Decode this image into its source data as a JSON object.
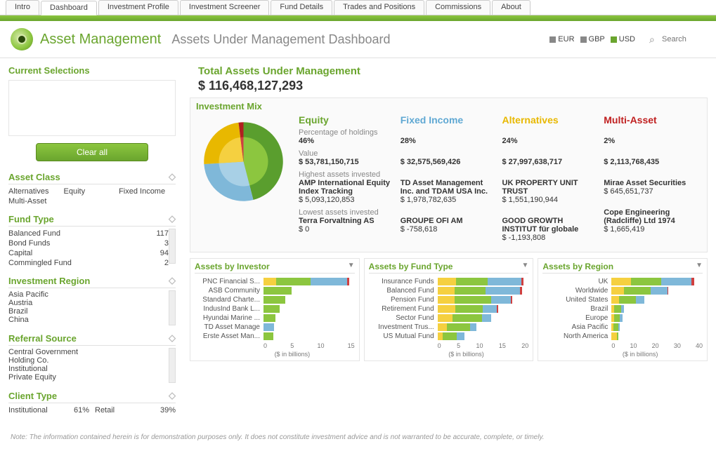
{
  "tabs": [
    "Intro",
    "Dashboard",
    "Investment Profile",
    "Investment Screener",
    "Fund Details",
    "Trades and Positions",
    "Commissions",
    "About"
  ],
  "active_tab": 1,
  "app_title": "Asset Management",
  "page_title": "Assets Under Management Dashboard",
  "currencies": [
    {
      "code": "EUR",
      "color": "#888888"
    },
    {
      "code": "GBP",
      "color": "#888888"
    },
    {
      "code": "USD",
      "color": "#6aa52e"
    }
  ],
  "search_placeholder": "Search",
  "sidebar": {
    "current_selections_title": "Current Selections",
    "clear_all": "Clear all",
    "filters": {
      "asset_class": {
        "title": "Asset Class",
        "items": [
          "Alternatives",
          "Equity",
          "Fixed Income",
          "Multi-Asset"
        ]
      },
      "fund_type": {
        "title": "Fund Type",
        "rows": [
          {
            "name": "Balanced Fund",
            "count": "117"
          },
          {
            "name": "Bond Funds",
            "count": "3"
          },
          {
            "name": "Capital",
            "count": "94"
          },
          {
            "name": "Commingled Fund",
            "count": "2"
          }
        ]
      },
      "investment_region": {
        "title": "Investment Region",
        "items": [
          "Asia Pacific",
          "Austria",
          "Brazil",
          "China"
        ]
      },
      "referral_source": {
        "title": "Referral Source",
        "items": [
          "Central Government",
          "Holding Co.",
          "Institutional",
          "Private Equity"
        ]
      },
      "client_type": {
        "title": "Client Type",
        "rows": [
          {
            "name": "Institutional",
            "pct": "61%",
            "name2": "Retail",
            "pct2": "39%"
          }
        ]
      }
    }
  },
  "aum": {
    "title": "Total Assets Under Management",
    "value": "$ 116,468,127,293"
  },
  "mix": {
    "title": "Investment Mix",
    "pie": {
      "slices": [
        {
          "label": "Equity",
          "value": 46,
          "color_outer": "#5a9e2e",
          "color_inner": "#8cc63f"
        },
        {
          "label": "Fixed Income",
          "value": 28,
          "color_outer": "#7fb8d9",
          "color_inner": "#a8d0e6"
        },
        {
          "label": "Alternatives",
          "value": 24,
          "color_outer": "#e8b800",
          "color_inner": "#f5d040"
        },
        {
          "label": "Multi-Asset",
          "value": 2,
          "color_outer": "#b02020",
          "color_inner": "#d04040"
        }
      ]
    },
    "labels": {
      "pct": "Percentage of holdings",
      "val": "Value",
      "hi": "Highest assets invested",
      "lo": "Lowest assets invested"
    },
    "cols": [
      {
        "name": "Equity",
        "color": "#6aa52e",
        "pct": "46%",
        "value": "$ 53,781,150,715",
        "hi_name": "AMP International Equity Index Tracking",
        "hi_val": "$ 5,093,120,853",
        "lo_name": "Terra Forvaltning AS",
        "lo_val": "$ 0"
      },
      {
        "name": "Fixed Income",
        "color": "#5fa8d3",
        "pct": "28%",
        "value": "$ 32,575,569,426",
        "hi_name": "TD Asset Management Inc. and TDAM USA Inc.",
        "hi_val": "$ 1,978,782,635",
        "lo_name": "GROUPE OFI AM",
        "lo_val": "$ -758,618"
      },
      {
        "name": "Alternatives",
        "color": "#e8b800",
        "pct": "24%",
        "value": "$ 27,997,638,717",
        "hi_name": "UK PROPERTY UNIT TRUST",
        "hi_val": "$ 1,551,190,944",
        "lo_name": "GOOD GROWTH INSTITUT für globale",
        "lo_val": "$ -1,193,808"
      },
      {
        "name": "Multi-Asset",
        "color": "#c02020",
        "pct": "2%",
        "value": "$ 2,113,768,435",
        "hi_name": "Mirae Asset Securities",
        "hi_val": "$ 645,651,737",
        "lo_name": "Cope Engineering (Radcliffe) Ltd 1974",
        "lo_val": "$ 1,665,419"
      }
    ]
  },
  "charts": {
    "axis_label": "($ in billions)",
    "colors": {
      "alt": "#f5d040",
      "eq": "#8cc63f",
      "fi": "#7fb8d9",
      "ma": "#d04040"
    },
    "investor": {
      "title": "Assets by Investor",
      "max": 17,
      "ticks": [
        "0",
        "5",
        "10",
        "15"
      ],
      "rows": [
        {
          "lbl": "PNC Financial S...",
          "segs": [
            {
              "c": "alt",
              "v": 2.3
            },
            {
              "c": "eq",
              "v": 6.5
            },
            {
              "c": "fi",
              "v": 6.8
            },
            {
              "c": "ma",
              "v": 0.4
            }
          ]
        },
        {
          "lbl": "ASB Community",
          "segs": [
            {
              "c": "eq",
              "v": 5.2
            }
          ]
        },
        {
          "lbl": "Standard Charte...",
          "segs": [
            {
              "c": "eq",
              "v": 4.0
            }
          ]
        },
        {
          "lbl": "IndusInd Bank L...",
          "segs": [
            {
              "c": "eq",
              "v": 3.0
            }
          ]
        },
        {
          "lbl": "Hyundai Marine ...",
          "segs": [
            {
              "c": "eq",
              "v": 2.2
            }
          ]
        },
        {
          "lbl": "TD Asset Manage",
          "segs": [
            {
              "c": "fi",
              "v": 2.0
            }
          ]
        },
        {
          "lbl": "Erste Asset Man...",
          "segs": [
            {
              "c": "eq",
              "v": 1.8
            }
          ]
        }
      ]
    },
    "fundtype": {
      "title": "Assets by Fund Type",
      "max": 23,
      "ticks": [
        "0",
        "5",
        "10",
        "15",
        "20"
      ],
      "rows": [
        {
          "lbl": "Insurance Funds",
          "segs": [
            {
              "c": "alt",
              "v": 4.7
            },
            {
              "c": "eq",
              "v": 8.0
            },
            {
              "c": "fi",
              "v": 8.5
            },
            {
              "c": "ma",
              "v": 0.5
            }
          ]
        },
        {
          "lbl": "Balanced Fund",
          "segs": [
            {
              "c": "alt",
              "v": 4.4
            },
            {
              "c": "eq",
              "v": 7.8
            },
            {
              "c": "fi",
              "v": 8.6
            },
            {
              "c": "ma",
              "v": 0.5
            }
          ]
        },
        {
          "lbl": "Pension Fund",
          "segs": [
            {
              "c": "alt",
              "v": 4.3
            },
            {
              "c": "eq",
              "v": 9.2
            },
            {
              "c": "fi",
              "v": 5.0
            },
            {
              "c": "ma",
              "v": 0.4
            }
          ]
        },
        {
          "lbl": "Retirement Fund",
          "segs": [
            {
              "c": "alt",
              "v": 4.5
            },
            {
              "c": "eq",
              "v": 7.0
            },
            {
              "c": "fi",
              "v": 3.5
            },
            {
              "c": "ma",
              "v": 0.3
            }
          ]
        },
        {
          "lbl": "Sector Fund",
          "segs": [
            {
              "c": "alt",
              "v": 3.8
            },
            {
              "c": "eq",
              "v": 7.5
            },
            {
              "c": "fi",
              "v": 2.2
            }
          ]
        },
        {
          "lbl": "Investment Trus...",
          "segs": [
            {
              "c": "alt",
              "v": 2.3
            },
            {
              "c": "eq",
              "v": 6.0
            },
            {
              "c": "fi",
              "v": 1.5
            }
          ]
        },
        {
          "lbl": "US Mutual Fund",
          "segs": [
            {
              "c": "alt",
              "v": 1.3
            },
            {
              "c": "eq",
              "v": 3.5
            },
            {
              "c": "fi",
              "v": 2.0
            }
          ]
        }
      ]
    },
    "region": {
      "title": "Assets by Region",
      "max": 45,
      "ticks": [
        "0",
        "10",
        "20",
        "30",
        "40"
      ],
      "rows": [
        {
          "lbl": "UK",
          "segs": [
            {
              "c": "alt",
              "v": 9.5
            },
            {
              "c": "eq",
              "v": 15.0
            },
            {
              "c": "fi",
              "v": 15.0
            },
            {
              "c": "ma",
              "v": 1.3
            }
          ]
        },
        {
          "lbl": "Worldwide",
          "segs": [
            {
              "c": "alt",
              "v": 6.3
            },
            {
              "c": "eq",
              "v": 13.0
            },
            {
              "c": "fi",
              "v": 8.5
            },
            {
              "c": "ma",
              "v": 0.3
            }
          ]
        },
        {
          "lbl": "United States",
          "segs": [
            {
              "c": "alt",
              "v": 3.6
            },
            {
              "c": "eq",
              "v": 8.5
            },
            {
              "c": "fi",
              "v": 4.0
            }
          ]
        },
        {
          "lbl": "Brazil",
          "segs": [
            {
              "c": "alt",
              "v": 1.4
            },
            {
              "c": "eq",
              "v": 3.5
            },
            {
              "c": "fi",
              "v": 1.2
            }
          ]
        },
        {
          "lbl": "Europe",
          "segs": [
            {
              "c": "alt",
              "v": 1.3
            },
            {
              "c": "eq",
              "v": 2.8
            },
            {
              "c": "fi",
              "v": 1.5
            }
          ]
        },
        {
          "lbl": "Asia Pacific",
          "segs": [
            {
              "c": "alt",
              "v": 1.0
            },
            {
              "c": "eq",
              "v": 2.5
            },
            {
              "c": "fi",
              "v": 0.7
            }
          ]
        },
        {
          "lbl": "North America",
          "segs": [
            {
              "c": "alt",
              "v": 2.8
            },
            {
              "c": "eq",
              "v": 0.5
            }
          ]
        }
      ]
    }
  },
  "footnote": "Note: The information contained herein is for demonstration purposes only. It does not constitute investment advice and is not warranted to be accurate, complete, or timely."
}
